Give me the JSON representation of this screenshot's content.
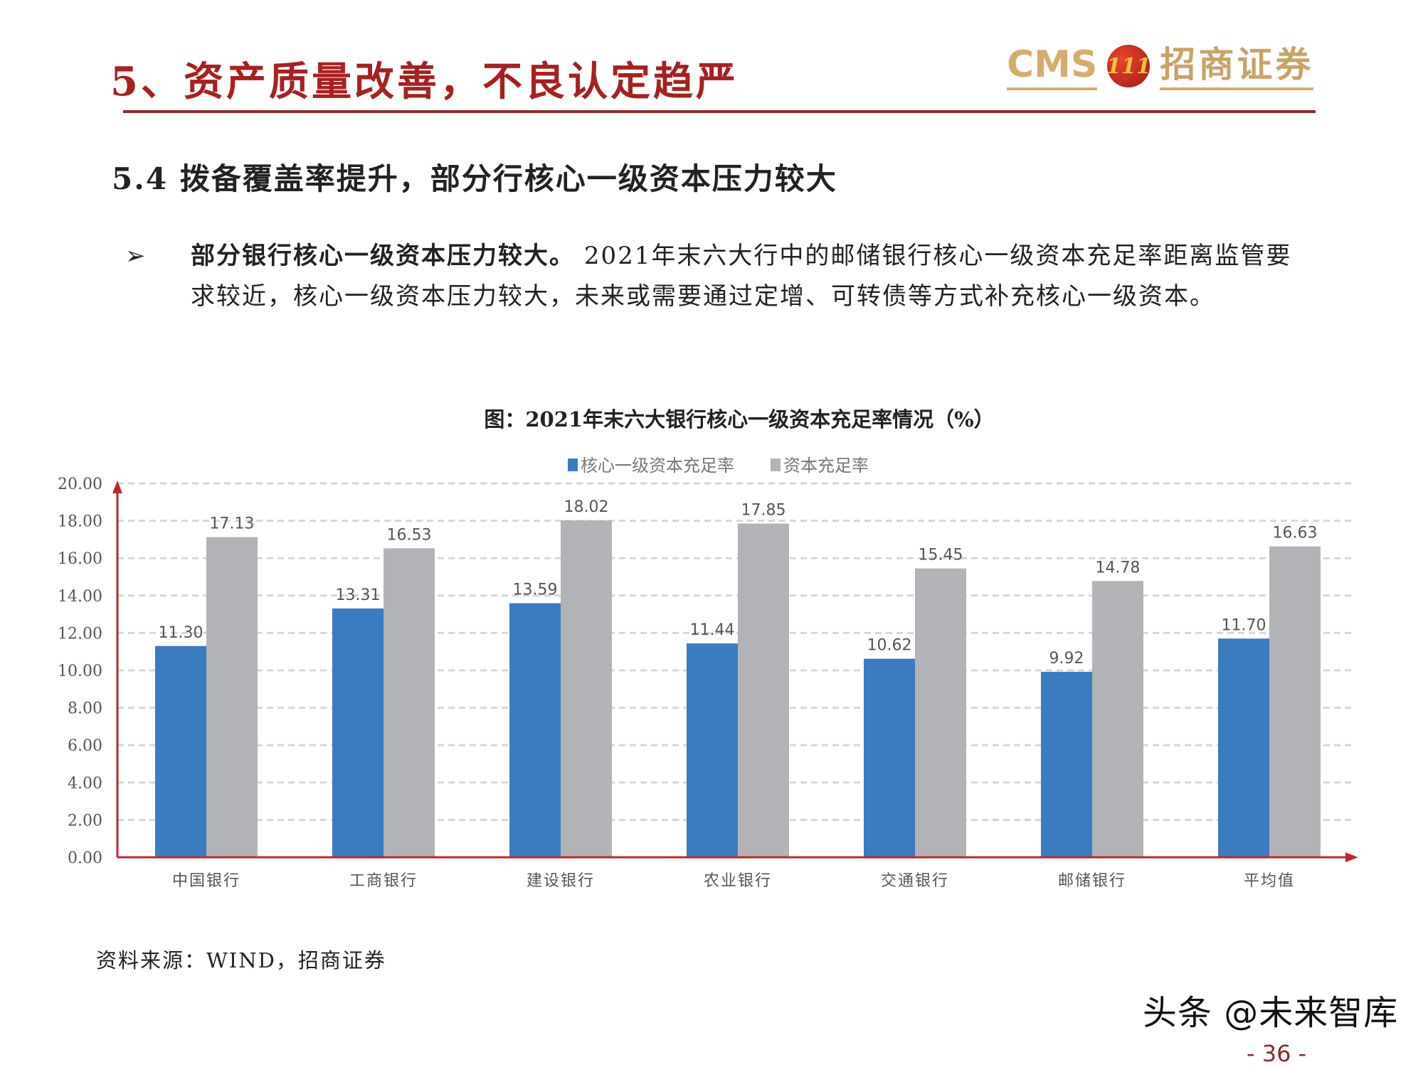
{
  "header": {
    "title": "5、资产质量改善，不良认定趋严",
    "logo": {
      "latin": "CMS",
      "emblem": "111",
      "chinese": "招商证券"
    }
  },
  "section": {
    "title": "5.4  拨备覆盖率提升，部分行核心一级资本压力较大"
  },
  "bullet": {
    "bold": "部分银行核心一级资本压力较大。",
    "text": "2021年末六大行中的邮储银行核心一级资本充足率距离监管要求较近，核心一级资本压力较大，未来或需要通过定增、可转债等方式补充核心一级资本。"
  },
  "chart_data": {
    "type": "bar",
    "title": "图：2021年末六大银行核心一级资本充足率情况（%）",
    "categories": [
      "中国银行",
      "工商银行",
      "建设银行",
      "农业银行",
      "交通银行",
      "邮储银行",
      "平均值"
    ],
    "series": [
      {
        "name": "核心一级资本充足率",
        "color": "#3b7bbf",
        "values": [
          11.3,
          13.31,
          13.59,
          11.44,
          10.62,
          9.92,
          11.7
        ]
      },
      {
        "name": "资本充足率",
        "color": "#b1b3b6",
        "values": [
          17.13,
          16.53,
          18.02,
          17.85,
          15.45,
          14.78,
          16.63
        ]
      }
    ],
    "ylim": [
      0,
      20
    ],
    "yticks": [
      "0.00",
      "2.00",
      "4.00",
      "6.00",
      "8.00",
      "10.00",
      "12.00",
      "14.00",
      "16.00",
      "18.00",
      "20.00"
    ],
    "grid": true,
    "legend": "top-center",
    "axis_color": "#c0272d"
  },
  "source": "资料来源：WIND，招商证券",
  "watermark": "头条 @未来智库",
  "page_number": "- 36 -"
}
